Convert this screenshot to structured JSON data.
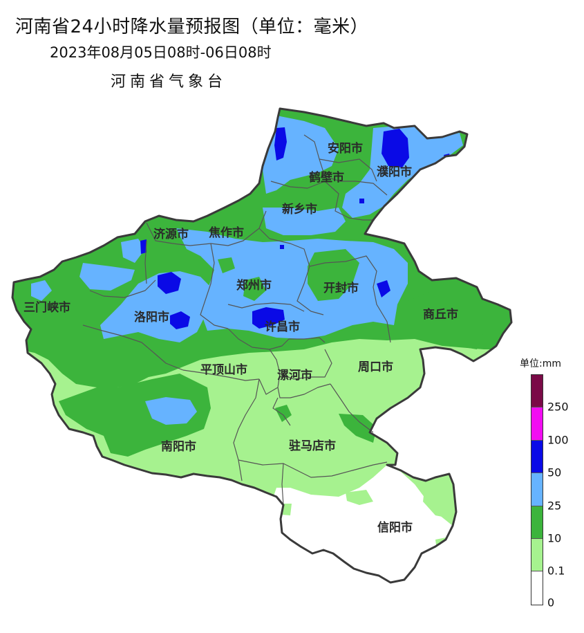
{
  "header": {
    "title": "河南省24小时降水量预报图（单位：毫米）",
    "period": "2023年08月05日08时-06日08时",
    "issuer": "河南省气象台"
  },
  "map": {
    "cities": [
      {
        "name": "安阳市"
      },
      {
        "name": "濮阳市"
      },
      {
        "name": "鹤壁市"
      },
      {
        "name": "新乡市"
      },
      {
        "name": "济源市"
      },
      {
        "name": "焦作市"
      },
      {
        "name": "郑州市"
      },
      {
        "name": "开封市"
      },
      {
        "name": "三门峡市"
      },
      {
        "name": "洛阳市"
      },
      {
        "name": "许昌市"
      },
      {
        "name": "商丘市"
      },
      {
        "name": "平顶山市"
      },
      {
        "name": "漯河市"
      },
      {
        "name": "周口市"
      },
      {
        "name": "南阳市"
      },
      {
        "name": "驻马店市"
      },
      {
        "name": "信阳市"
      }
    ]
  },
  "legend": {
    "unit": "单位:mm",
    "classes": [
      {
        "range": "250+",
        "color": "#7a0a47"
      },
      {
        "range": "100-250",
        "color": "#f20df2"
      },
      {
        "range": "50-100",
        "color": "#0a0ae6"
      },
      {
        "range": "25-50",
        "color": "#66b3ff"
      },
      {
        "range": "10-25",
        "color": "#3cb43c"
      },
      {
        "range": "0.1-10",
        "color": "#a6f28f"
      },
      {
        "range": "0-0.1",
        "color": "#ffffff"
      }
    ],
    "ticks": [
      "250",
      "100",
      "50",
      "25",
      "10",
      "0.1",
      "0"
    ]
  }
}
